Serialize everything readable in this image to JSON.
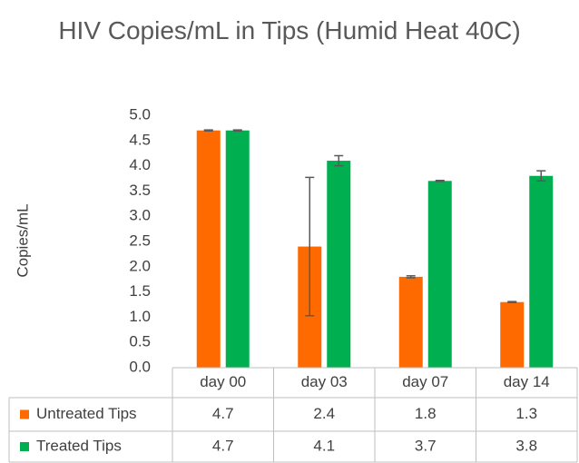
{
  "chart_data": {
    "type": "bar",
    "title": "HIV Copies/mL in Tips (Humid Heat 40C)",
    "y_label": "Copies/mL",
    "categories": [
      "day 00",
      "day 03",
      "day 07",
      "day 14"
    ],
    "series": [
      {
        "name": "Untreated Tips",
        "color": "#ff6a00",
        "values": [
          4.7,
          2.4,
          1.8,
          1.3
        ],
        "errors": [
          0.01,
          1.37,
          0.02,
          0.01
        ]
      },
      {
        "name": "Treated Tips",
        "color": "#00b050",
        "values": [
          4.7,
          4.1,
          3.7,
          3.8
        ],
        "errors": [
          0.01,
          0.1,
          0.01,
          0.1
        ]
      }
    ],
    "ylim": [
      0,
      5
    ],
    "yticks": [
      {
        "value": 0,
        "label": "0.0"
      },
      0.5,
      {
        "value": 1,
        "label": "1.0"
      },
      1.5,
      {
        "value": 2,
        "label": "2.0"
      },
      2.5,
      {
        "value": 3,
        "label": "3.0"
      },
      3.5,
      {
        "value": 4,
        "label": "4.0"
      },
      4.5,
      {
        "value": 5,
        "label": "5.0"
      }
    ],
    "grid": false,
    "data_table": true
  }
}
